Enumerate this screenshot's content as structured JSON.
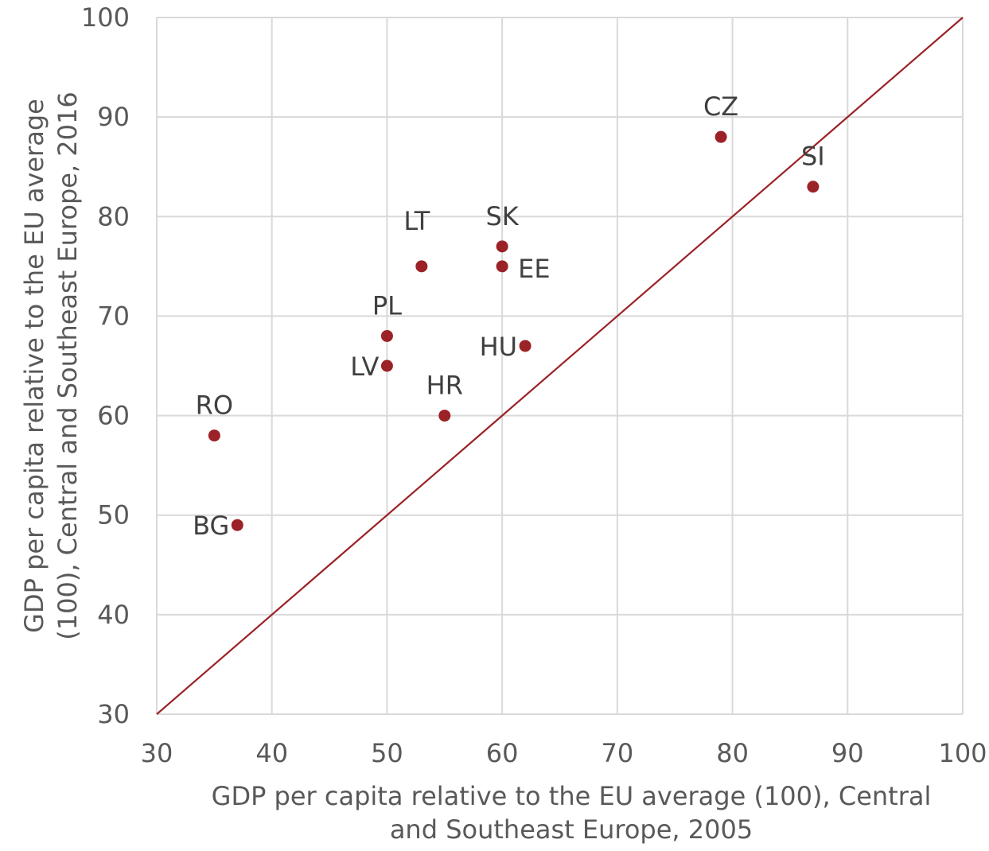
{
  "chart_data": {
    "type": "scatter",
    "title": "",
    "xlabel": "GDP per capita relative to the EU average (100), Central and Southeast Europe, 2005",
    "xlabel_lines": [
      "GDP per capita relative to the EU average (100), Central",
      "and Southeast Europe, 2005"
    ],
    "ylabel": "GDP per capita relative to the EU average (100), Central and Southeast Europe, 2016",
    "ylabel_lines": [
      "GDP per capita relative to the EU average",
      "(100), Central and Southeast Europe, 2016"
    ],
    "xlim": [
      30,
      100
    ],
    "ylim": [
      30,
      100
    ],
    "xticks": [
      30,
      40,
      50,
      60,
      70,
      80,
      90,
      100
    ],
    "yticks": [
      30,
      40,
      50,
      60,
      70,
      80,
      90,
      100
    ],
    "grid": true,
    "legend": "none",
    "reference_line": {
      "from": [
        30,
        30
      ],
      "to": [
        100,
        100
      ],
      "color": "#9b2226"
    },
    "marker_color": "#9b2226",
    "points": [
      {
        "label": "CZ",
        "x": 79,
        "y": 88,
        "label_pos": "above"
      },
      {
        "label": "SI",
        "x": 87,
        "y": 83,
        "label_pos": "above"
      },
      {
        "label": "SK",
        "x": 60,
        "y": 77,
        "label_pos": "above"
      },
      {
        "label": "EE",
        "x": 60,
        "y": 75,
        "label_pos": "right"
      },
      {
        "label": "LT",
        "x": 53,
        "y": 75,
        "label_pos": "above-left"
      },
      {
        "label": "PL",
        "x": 50,
        "y": 68,
        "label_pos": "above"
      },
      {
        "label": "HU",
        "x": 62,
        "y": 67,
        "label_pos": "left"
      },
      {
        "label": "LV",
        "x": 50,
        "y": 65,
        "label_pos": "left"
      },
      {
        "label": "HR",
        "x": 55,
        "y": 60,
        "label_pos": "above"
      },
      {
        "label": "RO",
        "x": 35,
        "y": 58,
        "label_pos": "above"
      },
      {
        "label": "BG",
        "x": 37,
        "y": 49,
        "label_pos": "left"
      }
    ]
  }
}
